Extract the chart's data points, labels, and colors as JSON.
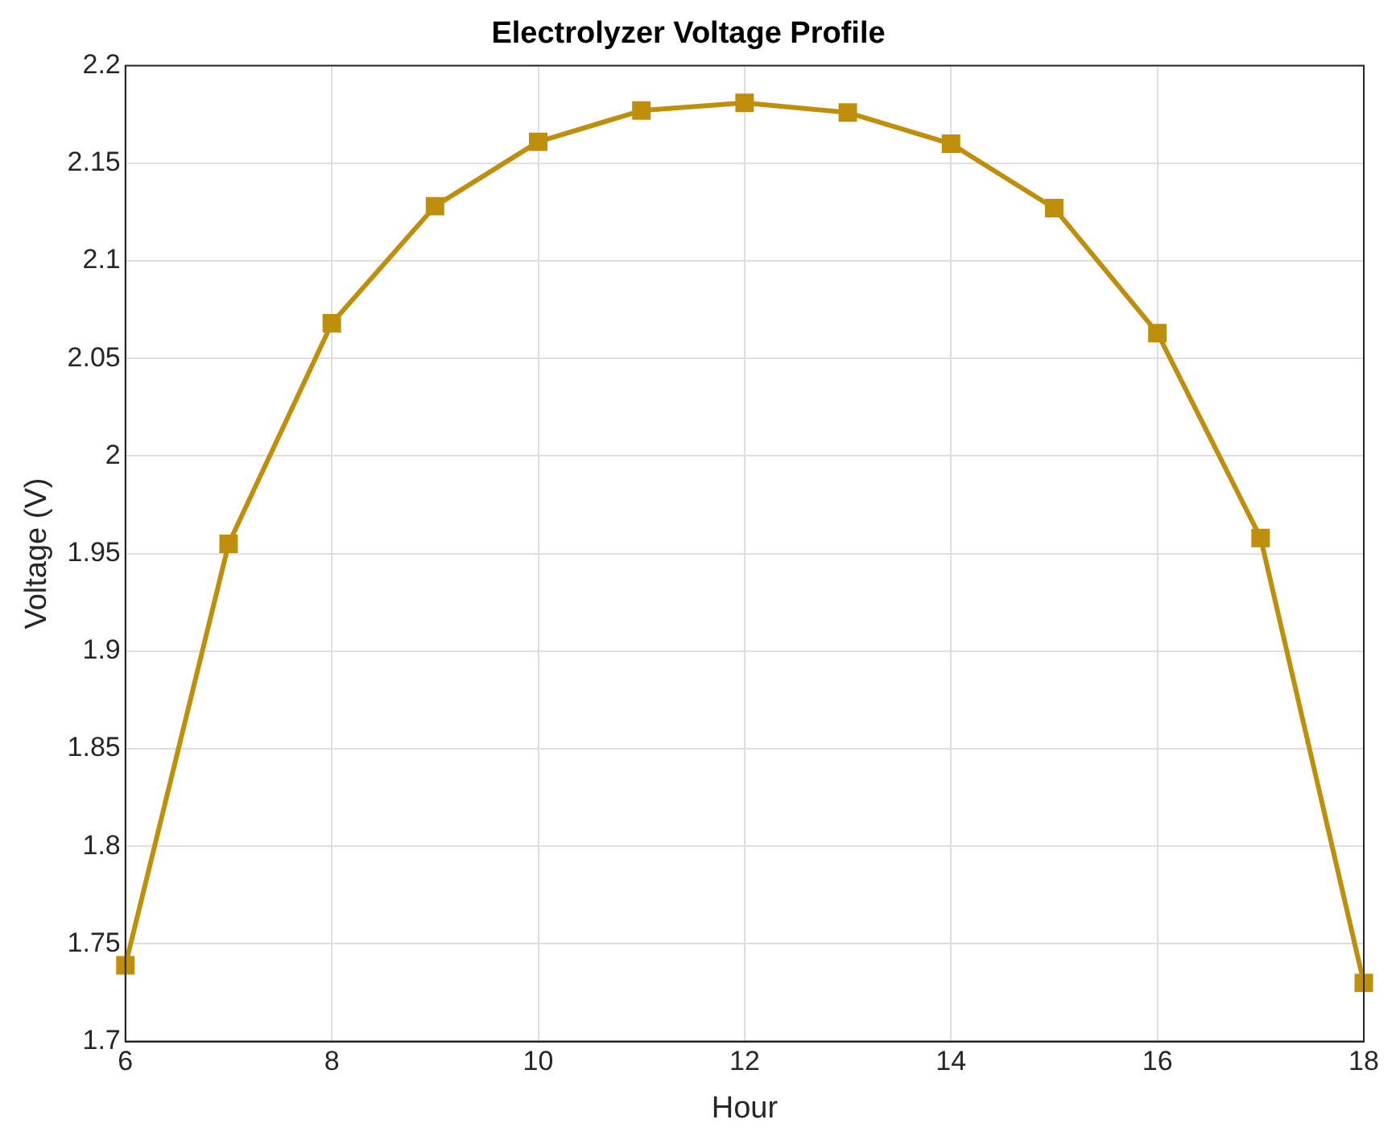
{
  "chart_data": {
    "type": "line",
    "title": "Electrolyzer Voltage Profile",
    "xlabel": "Hour",
    "ylabel": "Voltage (V)",
    "x": [
      6,
      7,
      8,
      9,
      10,
      11,
      12,
      13,
      14,
      15,
      16,
      17,
      18
    ],
    "series": [
      {
        "color": "#bf8f0c",
        "values": [
          1.739,
          1.955,
          2.068,
          2.128,
          2.161,
          2.177,
          2.181,
          2.176,
          2.16,
          2.127,
          2.063,
          1.958,
          1.73
        ]
      }
    ],
    "xlim": [
      6,
      18
    ],
    "xticks": [
      6,
      8,
      10,
      12,
      14,
      16,
      18
    ],
    "ylim": [
      1.7,
      2.2
    ],
    "yticks": [
      1.7,
      1.75,
      1.8,
      1.85,
      1.9,
      1.95,
      2,
      2.05,
      2.1,
      2.15,
      2.2
    ],
    "grid": true,
    "legend": false,
    "marker": "square",
    "line_style": "solid"
  }
}
